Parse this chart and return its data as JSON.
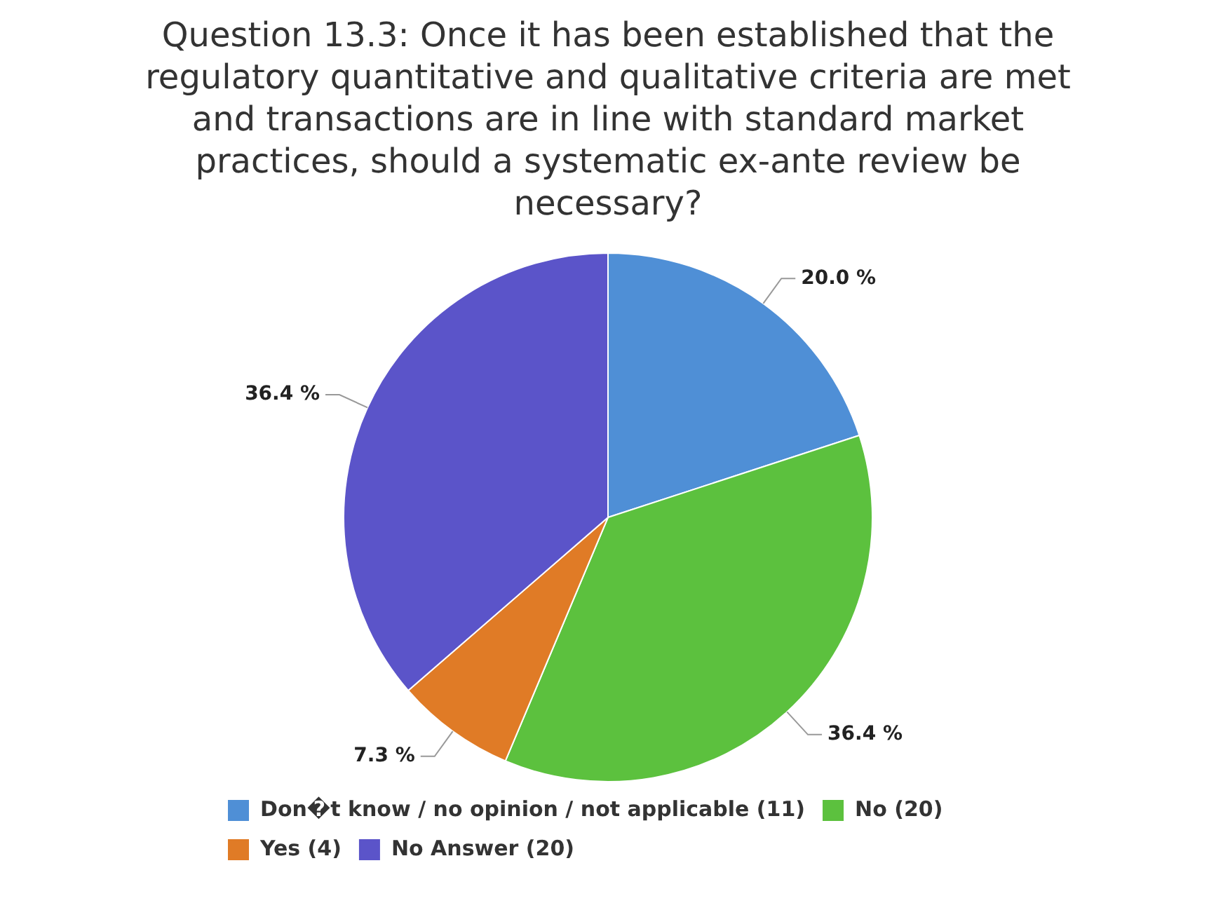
{
  "chart_data": {
    "type": "pie",
    "title": "Question 13.3: Once it has been established that the regulatory quantitative and qualitative criteria are met and transactions are in line with standard market practices, should a systematic ex-ante review be necessary?",
    "categories": [
      "Don�t know / no opinion / not applicable (11)",
      "No (20)",
      "Yes (4)",
      "No Answer (20)"
    ],
    "values": [
      20.0,
      36.4,
      7.3,
      36.4
    ],
    "value_labels": [
      "20.0 %",
      "36.4 %",
      "7.3 %",
      "36.4 %"
    ],
    "colors": [
      "#4f8fd6",
      "#5cc13e",
      "#e07b26",
      "#5b54c9"
    ],
    "legend": "bottom"
  }
}
